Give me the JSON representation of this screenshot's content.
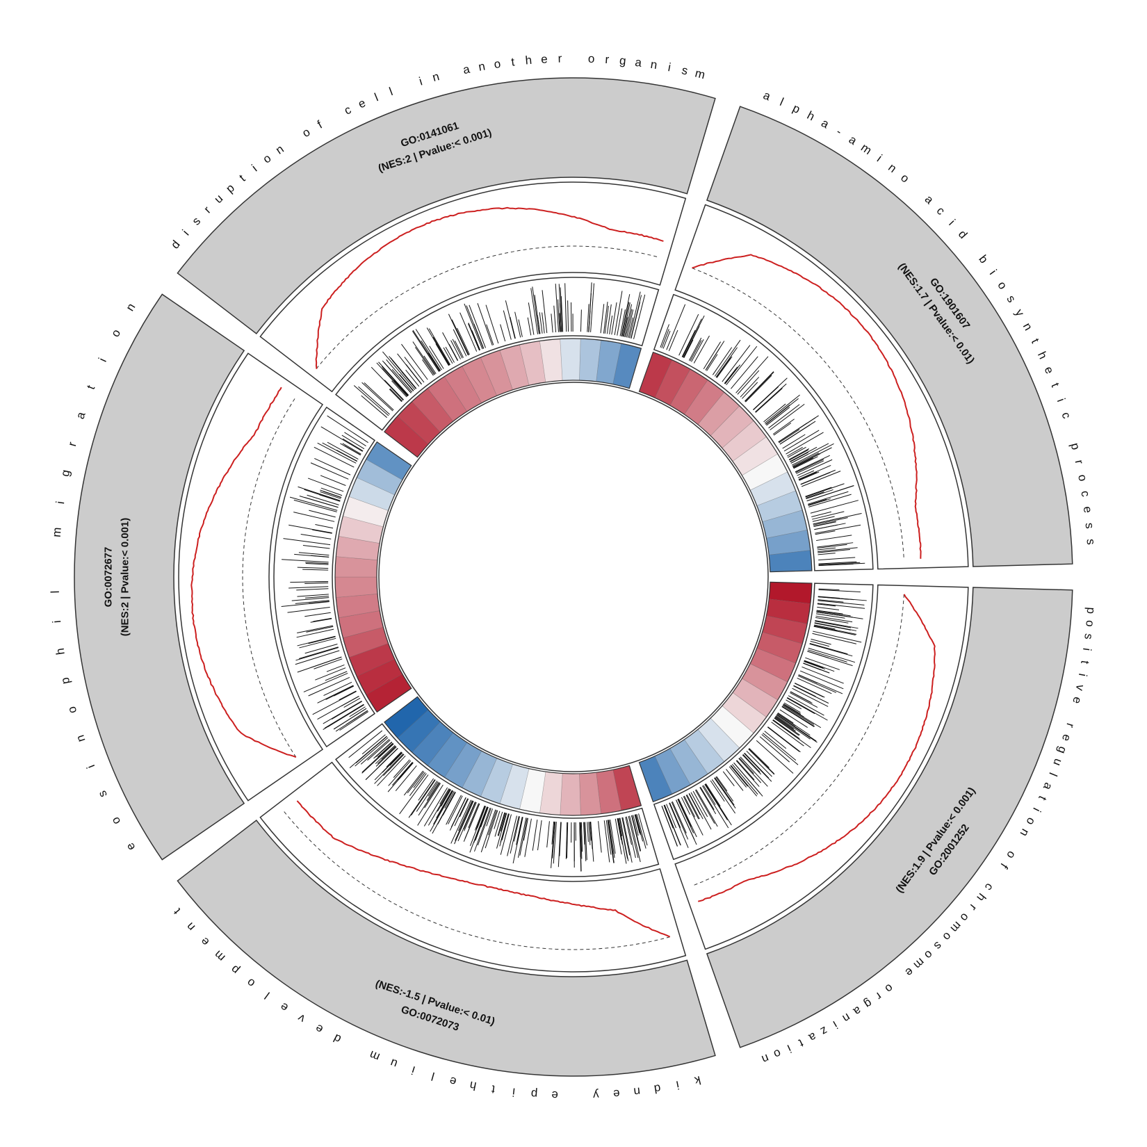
{
  "chart_data": {
    "type": "circular-gsea",
    "colors": {
      "sector_fill": "#cccccc",
      "running_score": "#cc1f1f",
      "positive": "#b2182b",
      "negative": "#2166ac",
      "neutral": "#f7f7f7"
    },
    "sets": [
      {
        "id": "GO:2001252",
        "description": "positive regulation of chromosome organization",
        "stats": "(NES:1.9 | Pvalue:< 0.001)",
        "nes": 1.9,
        "hit_density": 0.9,
        "heat": [
          1.0,
          0.9,
          0.8,
          0.7,
          0.6,
          0.45,
          0.3,
          0.15,
          0.0,
          -0.15,
          -0.3,
          -0.45,
          -0.6,
          -0.8
        ]
      },
      {
        "id": "GO:0072073",
        "description": "kidney epithelium development",
        "stats": "(NES:-1.5 | Pvalue:< 0.01)",
        "nes": -1.5,
        "hit_density": 1.0,
        "heat": [
          0.8,
          0.6,
          0.45,
          0.3,
          0.15,
          0.0,
          -0.15,
          -0.3,
          -0.45,
          -0.6,
          -0.7,
          -0.8,
          -0.9,
          -1.0
        ]
      },
      {
        "id": "GO:0072677",
        "description": "eosinophil migration",
        "stats": "(NES:2 | Pvalue:< 0.001)",
        "nes": 2,
        "hit_density": 0.35,
        "heat": [
          0.95,
          0.9,
          0.85,
          0.7,
          0.6,
          0.55,
          0.5,
          0.45,
          0.35,
          0.2,
          0.05,
          -0.2,
          -0.4,
          -0.7
        ]
      },
      {
        "id": "GO:0141061",
        "description": "disruption of cell in another organism",
        "stats": "(NES:2 | Pvalue:< 0.001)",
        "nes": 2,
        "hit_density": 0.55,
        "heat": [
          0.85,
          0.8,
          0.7,
          0.6,
          0.55,
          0.5,
          0.45,
          0.35,
          0.25,
          0.1,
          -0.15,
          -0.35,
          -0.55,
          -0.75
        ]
      },
      {
        "id": "GO:1901607",
        "description": "alpha-amino acid biosynthetic process",
        "stats": "(NES:1.7 | Pvalue:< 0.01)",
        "nes": 1.7,
        "hit_density": 0.55,
        "heat": [
          0.85,
          0.75,
          0.65,
          0.55,
          0.4,
          0.3,
          0.2,
          0.1,
          0.0,
          -0.15,
          -0.3,
          -0.45,
          -0.6,
          -0.8
        ]
      }
    ]
  }
}
